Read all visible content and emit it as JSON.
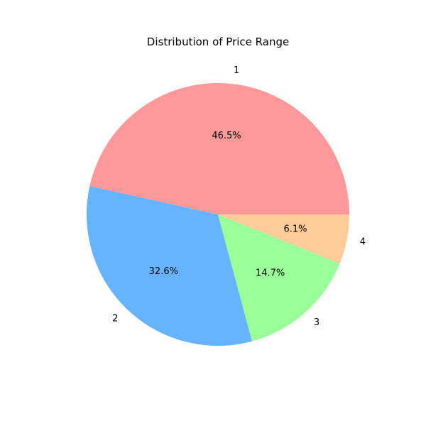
{
  "chart_data": {
    "type": "pie",
    "title": "Distribution of Price Range",
    "categories": [
      "1",
      "2",
      "3",
      "4"
    ],
    "values": [
      46.5,
      32.6,
      14.7,
      6.1
    ],
    "percent_labels": [
      "46.5%",
      "32.6%",
      "14.7%",
      "6.1%"
    ],
    "colors": [
      "#ff9999",
      "#66b3ff",
      "#99ff99",
      "#ffcc99"
    ],
    "start_angle_deg": 0,
    "direction": "counterclockwise",
    "legend": "none"
  }
}
